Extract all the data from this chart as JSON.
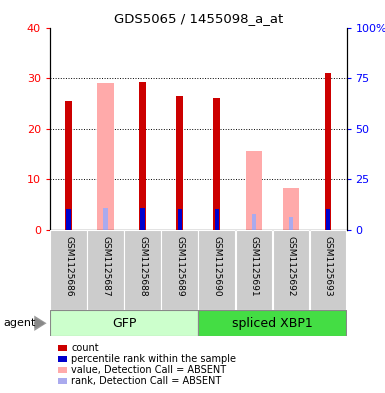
{
  "title": "GDS5065 / 1455098_a_at",
  "samples": [
    "GSM1125686",
    "GSM1125687",
    "GSM1125688",
    "GSM1125689",
    "GSM1125690",
    "GSM1125691",
    "GSM1125692",
    "GSM1125693"
  ],
  "count_values": [
    25.5,
    null,
    29.2,
    26.5,
    26.0,
    null,
    null,
    31.0
  ],
  "percentile_values": [
    10.5,
    null,
    11.0,
    10.5,
    10.5,
    null,
    null,
    10.5
  ],
  "absent_value_values": [
    null,
    29.0,
    null,
    null,
    null,
    15.5,
    8.2,
    null
  ],
  "absent_rank_values": [
    null,
    11.0,
    null,
    null,
    null,
    8.0,
    6.2,
    null
  ],
  "ylim_left": [
    0,
    40
  ],
  "ylim_right": [
    0,
    100
  ],
  "yticks_left": [
    0,
    10,
    20,
    30,
    40
  ],
  "yticks_right": [
    0,
    25,
    50,
    75,
    100
  ],
  "ytick_labels_right": [
    "0",
    "25",
    "50",
    "75",
    "100%"
  ],
  "color_count": "#cc0000",
  "color_percentile": "#0000cc",
  "color_absent_value": "#ffaaaa",
  "color_absent_rank": "#aaaaee",
  "gfp_light": "#ccffcc",
  "gfp_dark": "#44dd44",
  "legend_items": [
    {
      "color": "#cc0000",
      "label": "count"
    },
    {
      "color": "#0000cc",
      "label": "percentile rank within the sample"
    },
    {
      "color": "#ffaaaa",
      "label": "value, Detection Call = ABSENT"
    },
    {
      "color": "#aaaaee",
      "label": "rank, Detection Call = ABSENT"
    }
  ]
}
